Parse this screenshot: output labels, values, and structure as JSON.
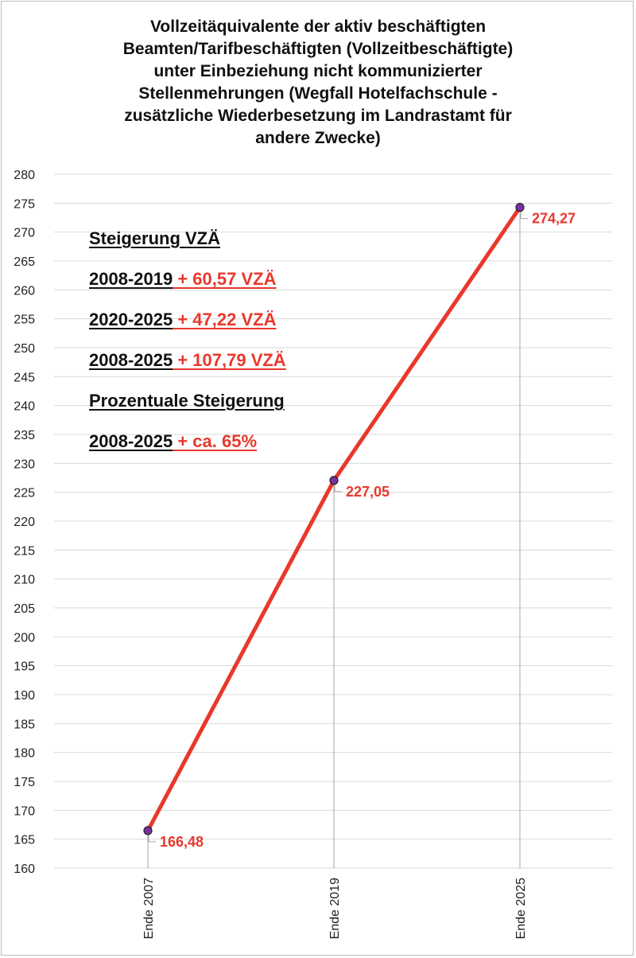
{
  "chart_data": {
    "type": "line",
    "title_lines": [
      "Vollzeitäquivalente der aktiv beschäftigten",
      "Beamten/Tarifbeschäftigten (Vollzeitbeschäftigte)",
      "unter Einbeziehung nicht kommunizierter",
      "Stellenmehrungen (Wegfall Hotelfachschule -",
      "zusätzliche Wiederbesetzung im Landrastamt für",
      "andere Zwecke)"
    ],
    "categories": [
      "Ende 2007",
      "Ende 2019",
      "Ende 2025"
    ],
    "values": [
      166.48,
      227.05,
      274.27
    ],
    "data_labels": [
      "166,48",
      "227,05",
      "274,27"
    ],
    "ylim": [
      160,
      280
    ],
    "ytick_step": 5,
    "grid": true,
    "line_color": "#e8382c",
    "marker_color": "#7b2fa3",
    "label_color": "#e8382c",
    "annotations": [
      {
        "black": "Steigerung VZÄ",
        "red": ""
      },
      {
        "black": "2008-2019",
        "red": " + 60,57 VZÄ"
      },
      {
        "black": "2020-2025",
        "red": " + 47,22 VZÄ"
      },
      {
        "black": "2008-2025",
        "red": " + 107,79 VZÄ"
      },
      {
        "black": "Prozentuale Steigerung",
        "red": ""
      },
      {
        "black": "2008-2025",
        "red": " + ca. 65%"
      }
    ]
  }
}
